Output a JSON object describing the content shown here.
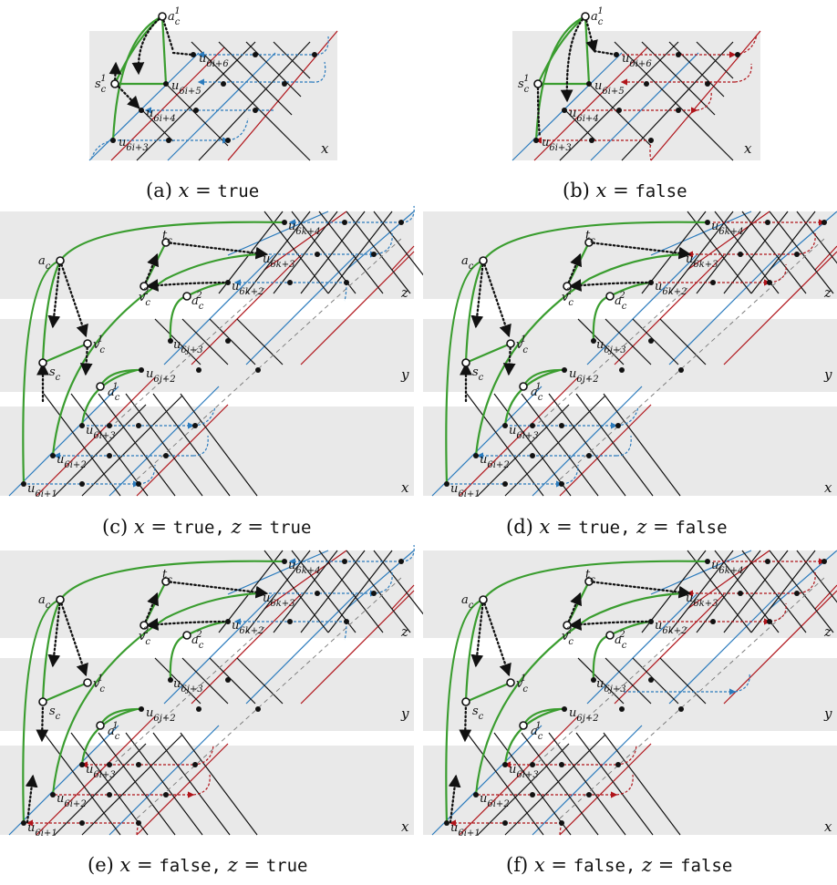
{
  "panels": [
    {
      "id": "a",
      "caption_prefix": "(a)",
      "cond1_var": "x",
      "eq": "=",
      "cond1_val": "true",
      "cond2_var": "",
      "cond2_val": ""
    },
    {
      "id": "b",
      "caption_prefix": "(b)",
      "cond1_var": "x",
      "eq": "=",
      "cond1_val": "false",
      "cond2_var": "",
      "cond2_val": ""
    },
    {
      "id": "c",
      "caption_prefix": "(c)",
      "cond1_var": "x",
      "eq": "=",
      "cond1_val": "true,",
      "cond2_var": "z",
      "cond2_val": "true"
    },
    {
      "id": "d",
      "caption_prefix": "(d)",
      "cond1_var": "x",
      "eq": "=",
      "cond1_val": "true,",
      "cond2_var": "z",
      "cond2_val": "false"
    },
    {
      "id": "e",
      "caption_prefix": "(e)",
      "cond1_var": "x",
      "eq": "=",
      "cond1_val": "false,",
      "cond2_var": "z",
      "cond2_val": "true"
    },
    {
      "id": "f",
      "caption_prefix": "(f)",
      "cond1_var": "x",
      "eq": "=",
      "cond1_val": "false,",
      "cond2_var": "z",
      "cond2_val": "false"
    }
  ],
  "labels": {
    "a_c1": "a",
    "sup1": "1",
    "sup2": "2",
    "sub_c": "c",
    "s_c": "s",
    "t_c": "t",
    "v_c": "v",
    "a_c": "a",
    "u": "u",
    "sup_x": "x",
    "sup_y": "y",
    "sup_z": "z",
    "sub_6i1": "6i+1",
    "sub_6i2": "6i+2",
    "sub_6i3": "6i+3",
    "sub_6i4": "6i+4",
    "sub_6i5": "6i+5",
    "sub_6i6": "6i+6",
    "sub_6j2": "6j+2",
    "sub_6j3": "6j+3",
    "sub_6k2": "6k+2",
    "sub_6k3": "6k+3",
    "sub_6k4": "6k+4",
    "var_x": "x",
    "var_y": "y",
    "var_z": "z"
  },
  "colors": {
    "green_path": "#3a9d2f",
    "blue_edge": "#2b7bbd",
    "red_edge": "#b0141a",
    "band": "#e9e9e9"
  }
}
